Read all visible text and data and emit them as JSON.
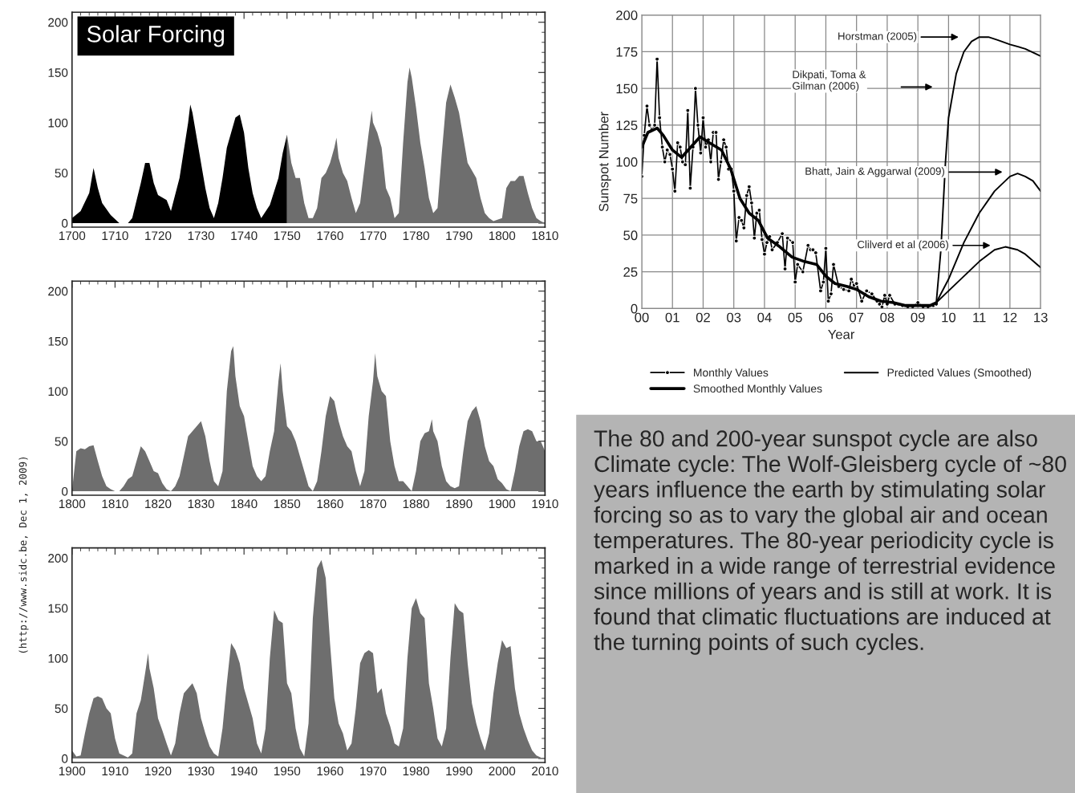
{
  "chart_data": [
    {
      "type": "area",
      "title": "Solar Forcing",
      "xlim": [
        1700,
        1810
      ],
      "ylim": [
        -4,
        210
      ],
      "xticks": [
        1700,
        1710,
        1720,
        1730,
        1740,
        1750,
        1760,
        1770,
        1780,
        1790,
        1800,
        1810
      ],
      "yticks": [
        0,
        50,
        100,
        150,
        200
      ],
      "grid": false,
      "series": [
        {
          "color": "#000000",
          "x": [
            1700,
            1702,
            1704,
            1705,
            1706,
            1707,
            1709,
            1711,
            1713,
            1714,
            1716,
            1717,
            1718,
            1719,
            1720,
            1722,
            1723,
            1725,
            1727,
            1727.5,
            1728,
            1730,
            1731,
            1732,
            1733,
            1734,
            1735,
            1736,
            1738,
            1739,
            1740,
            1741,
            1742,
            1743,
            1744,
            1746,
            1748,
            1749,
            1750
          ],
          "values": [
            5,
            12,
            30,
            55,
            35,
            20,
            8,
            0,
            0,
            5,
            40,
            60,
            60,
            40,
            28,
            23,
            12,
            45,
            100,
            118,
            110,
            60,
            35,
            15,
            5,
            20,
            45,
            75,
            105,
            108,
            90,
            55,
            30,
            15,
            5,
            18,
            45,
            70,
            88
          ]
        },
        {
          "color": "#6e6e6e",
          "x": [
            1750,
            1751,
            1752,
            1753,
            1754,
            1755,
            1756,
            1757,
            1758,
            1759,
            1760,
            1761,
            1761.5,
            1762,
            1763,
            1764,
            1765,
            1766,
            1767,
            1768,
            1769,
            1769.7,
            1770,
            1771,
            1772,
            1773,
            1774,
            1775,
            1776,
            1777,
            1778,
            1778.5,
            1779,
            1780,
            1781,
            1782,
            1783,
            1784,
            1785,
            1786,
            1787,
            1788,
            1789,
            1790,
            1791,
            1792,
            1794,
            1795,
            1796,
            1797,
            1798,
            1800,
            1801,
            1802,
            1803,
            1804,
            1805,
            1806,
            1807,
            1808,
            1809,
            1810
          ],
          "values": [
            88,
            60,
            45,
            45,
            20,
            5,
            5,
            15,
            45,
            50,
            60,
            75,
            85,
            65,
            50,
            42,
            25,
            10,
            20,
            55,
            90,
            112,
            100,
            90,
            75,
            35,
            25,
            5,
            10,
            80,
            140,
            155,
            145,
            115,
            80,
            55,
            25,
            10,
            15,
            70,
            120,
            138,
            125,
            110,
            85,
            60,
            45,
            25,
            10,
            5,
            2,
            5,
            35,
            42,
            42,
            47,
            47,
            30,
            15,
            5,
            2,
            0
          ]
        }
      ]
    },
    {
      "type": "area",
      "xlim": [
        1800,
        1910
      ],
      "ylim": [
        -4,
        210
      ],
      "xticks": [
        1800,
        1810,
        1820,
        1830,
        1840,
        1850,
        1860,
        1870,
        1880,
        1890,
        1900,
        1910
      ],
      "yticks": [
        0,
        50,
        100,
        150,
        200
      ],
      "grid": false,
      "series": [
        {
          "color": "#6e6e6e",
          "x": [
            1800,
            1801,
            1802,
            1803,
            1804,
            1805,
            1806,
            1807,
            1808,
            1809,
            1810,
            1811,
            1812,
            1813,
            1814,
            1815,
            1816,
            1817,
            1818,
            1819,
            1820,
            1821,
            1822,
            1823,
            1824,
            1825,
            1826,
            1827,
            1828,
            1829,
            1830,
            1831,
            1832,
            1833,
            1834,
            1835,
            1836,
            1837,
            1837.5,
            1838,
            1839,
            1840,
            1841,
            1842,
            1843,
            1844,
            1845,
            1846,
            1847,
            1848,
            1848.5,
            1849,
            1850,
            1851,
            1852,
            1853,
            1854,
            1855,
            1856,
            1857,
            1858,
            1859,
            1860,
            1861,
            1862,
            1863,
            1864,
            1865,
            1866,
            1867,
            1868,
            1869,
            1870,
            1870.5,
            1871,
            1872,
            1873,
            1874,
            1875,
            1876,
            1877,
            1878,
            1879,
            1880,
            1881,
            1882,
            1883,
            1883.7,
            1884,
            1885,
            1886,
            1887,
            1888,
            1889,
            1890,
            1891,
            1892,
            1893,
            1894,
            1895,
            1896,
            1897,
            1898,
            1899,
            1900,
            1901,
            1902,
            1903,
            1904,
            1905,
            1906,
            1907,
            1908,
            1909,
            1910
          ],
          "values": [
            0,
            40,
            43,
            42,
            45,
            46,
            30,
            15,
            5,
            2,
            0,
            0,
            5,
            12,
            15,
            30,
            45,
            40,
            30,
            20,
            18,
            8,
            2,
            0,
            5,
            15,
            35,
            55,
            60,
            65,
            70,
            55,
            30,
            10,
            5,
            20,
            100,
            140,
            145,
            115,
            85,
            75,
            50,
            25,
            15,
            10,
            15,
            40,
            60,
            110,
            128,
            100,
            65,
            60,
            50,
            35,
            20,
            5,
            0,
            10,
            40,
            75,
            95,
            90,
            70,
            55,
            45,
            40,
            20,
            5,
            20,
            75,
            110,
            138,
            115,
            100,
            95,
            50,
            25,
            10,
            10,
            5,
            0,
            20,
            50,
            58,
            60,
            72,
            60,
            50,
            25,
            10,
            5,
            3,
            5,
            40,
            70,
            80,
            85,
            70,
            45,
            30,
            25,
            12,
            8,
            2,
            0,
            20,
            45,
            60,
            62,
            60,
            50,
            50,
            40
          ]
        }
      ]
    },
    {
      "type": "area",
      "xlim": [
        1900,
        2010
      ],
      "ylim": [
        -4,
        210
      ],
      "xticks": [
        1900,
        1910,
        1920,
        1930,
        1940,
        1950,
        1960,
        1970,
        1980,
        1990,
        2000,
        2010
      ],
      "yticks": [
        0,
        50,
        100,
        150,
        200
      ],
      "grid": false,
      "annotations": [
        "(http://www.sidc.be, Dec 1, 2009)"
      ],
      "series": [
        {
          "color": "#6e6e6e",
          "x": [
            1900,
            1901,
            1902,
            1903,
            1904,
            1905,
            1906,
            1907,
            1908,
            1909,
            1910,
            1911,
            1912,
            1913,
            1914,
            1915,
            1916,
            1917,
            1917.7,
            1918,
            1919,
            1920,
            1921,
            1922,
            1923,
            1924,
            1925,
            1926,
            1927,
            1928,
            1929,
            1930,
            1931,
            1932,
            1933,
            1934,
            1935,
            1936,
            1937,
            1938,
            1939,
            1940,
            1941,
            1942,
            1943,
            1944,
            1945,
            1946,
            1947,
            1948,
            1949,
            1950,
            1951,
            1952,
            1953,
            1954,
            1955,
            1956,
            1957,
            1958,
            1959,
            1960,
            1961,
            1962,
            1963,
            1964,
            1965,
            1966,
            1967,
            1968,
            1969,
            1970,
            1971,
            1972,
            1973,
            1974,
            1975,
            1976,
            1977,
            1978,
            1979,
            1980,
            1981,
            1982,
            1983,
            1984,
            1985,
            1986,
            1987,
            1988,
            1989,
            1990,
            1991,
            1992,
            1993,
            1994,
            1995,
            1996,
            1997,
            1998,
            1999,
            2000,
            2001,
            2002,
            2003,
            2004,
            2005,
            2006,
            2007,
            2008,
            2009
          ],
          "values": [
            8,
            2,
            3,
            25,
            45,
            60,
            62,
            60,
            50,
            45,
            20,
            5,
            3,
            1,
            5,
            45,
            58,
            85,
            105,
            90,
            70,
            40,
            28,
            15,
            3,
            15,
            45,
            65,
            70,
            75,
            65,
            40,
            25,
            12,
            5,
            2,
            30,
            75,
            115,
            108,
            95,
            70,
            55,
            40,
            15,
            5,
            30,
            100,
            148,
            138,
            135,
            75,
            65,
            30,
            10,
            2,
            35,
            140,
            190,
            198,
            180,
            115,
            60,
            35,
            25,
            8,
            15,
            50,
            95,
            105,
            108,
            105,
            65,
            70,
            45,
            32,
            15,
            12,
            30,
            100,
            150,
            160,
            145,
            140,
            75,
            50,
            20,
            12,
            30,
            100,
            155,
            148,
            145,
            95,
            55,
            35,
            20,
            8,
            25,
            65,
            95,
            118,
            110,
            112,
            70,
            45,
            30,
            18,
            8,
            3,
            1
          ]
        }
      ]
    },
    {
      "type": "line",
      "xlabel": "Year",
      "ylabel": "Sunspot Number",
      "xlim": [
        2000,
        2013
      ],
      "ylim": [
        0,
        200
      ],
      "xticks": [
        {
          "value": 2000,
          "label": "00"
        },
        {
          "value": 2001,
          "label": "01"
        },
        {
          "value": 2002,
          "label": "02"
        },
        {
          "value": 2003,
          "label": "03"
        },
        {
          "value": 2004,
          "label": "04"
        },
        {
          "value": 2005,
          "label": "05"
        },
        {
          "value": 2006,
          "label": "06"
        },
        {
          "value": 2007,
          "label": "07"
        },
        {
          "value": 2008,
          "label": "08"
        },
        {
          "value": 2009,
          "label": "09"
        },
        {
          "value": 2010,
          "label": "10"
        },
        {
          "value": 2011,
          "label": "11"
        },
        {
          "value": 2012,
          "label": "12"
        },
        {
          "value": 2013,
          "label": "13"
        }
      ],
      "yticks": [
        0,
        25,
        50,
        75,
        100,
        125,
        150,
        175,
        200
      ],
      "grid": true,
      "legend": "bottom",
      "annotations": [
        "Horstman (2005)",
        "Dikpati, Toma &\nGilman (2006)",
        "Bhatt, Jain & Aggarwal (2009)",
        "Clilverd et al (2006)"
      ],
      "series": [
        {
          "name": "Monthly Values",
          "color": "#000000",
          "marker": "circle",
          "x": [
            2000.0,
            2000.08,
            2000.17,
            2000.25,
            2000.33,
            2000.42,
            2000.5,
            2000.58,
            2000.67,
            2000.75,
            2000.83,
            2000.92,
            2001.0,
            2001.08,
            2001.17,
            2001.25,
            2001.33,
            2001.42,
            2001.5,
            2001.58,
            2001.67,
            2001.75,
            2001.83,
            2001.92,
            2002.0,
            2002.08,
            2002.17,
            2002.25,
            2002.33,
            2002.42,
            2002.5,
            2002.58,
            2002.67,
            2002.75,
            2002.83,
            2002.92,
            2003.0,
            2003.08,
            2003.17,
            2003.25,
            2003.33,
            2003.42,
            2003.5,
            2003.58,
            2003.67,
            2003.75,
            2003.83,
            2003.92,
            2004.0,
            2004.08,
            2004.17,
            2004.25,
            2004.42,
            2004.58,
            2004.67,
            2004.75,
            2004.92,
            2005.0,
            2005.08,
            2005.25,
            2005.42,
            2005.5,
            2005.58,
            2005.67,
            2005.83,
            2005.92,
            2006.0,
            2006.08,
            2006.17,
            2006.25,
            2006.42,
            2006.58,
            2006.75,
            2006.83,
            2006.92,
            2007.0,
            2007.17,
            2007.33,
            2007.5,
            2007.67,
            2007.75,
            2007.83,
            2007.92,
            2008.0,
            2008.08,
            2008.25,
            2008.5,
            2008.67,
            2008.83,
            2009.0,
            2009.17,
            2009.33,
            2009.5,
            2009.6
          ],
          "values": [
            90,
            118,
            138,
            125,
            122,
            125,
            170,
            130,
            110,
            100,
            108,
            105,
            95,
            80,
            113,
            110,
            100,
            98,
            135,
            82,
            110,
            150,
            125,
            106,
            130,
            110,
            115,
            100,
            120,
            120,
            88,
            100,
            115,
            110,
            95,
            95,
            80,
            46,
            62,
            60,
            55,
            77,
            83,
            72,
            48,
            65,
            67,
            47,
            37,
            45,
            49,
            40,
            45,
            51,
            27,
            48,
            45,
            18,
            30,
            25,
            43,
            40,
            40,
            38,
            12,
            18,
            41,
            5,
            10,
            30,
            15,
            13,
            12,
            20,
            16,
            17,
            5,
            12,
            10,
            5,
            3,
            1,
            9,
            3,
            9,
            3,
            2,
            1,
            1,
            4,
            1,
            1,
            2,
            3
          ]
        },
        {
          "name": "Smoothed Monthly Values",
          "color": "#000000",
          "x": [
            2000.0,
            2000.2,
            2000.5,
            2000.7,
            2001.0,
            2001.3,
            2001.6,
            2001.9,
            2002.2,
            2002.6,
            2002.9,
            2003.2,
            2003.5,
            2003.8,
            2004.1,
            2004.5,
            2004.9,
            2005.3,
            2005.7,
            2006.0,
            2006.3,
            2006.7,
            2007.0,
            2007.4,
            2007.8,
            2008.2,
            2008.6,
            2009.0,
            2009.4,
            2009.6
          ],
          "values": [
            110,
            120,
            123,
            118,
            108,
            103,
            110,
            117,
            113,
            108,
            95,
            75,
            65,
            60,
            48,
            42,
            35,
            32,
            30,
            22,
            17,
            15,
            13,
            8,
            5,
            4,
            2,
            2,
            2,
            4
          ]
        },
        {
          "name": "Predicted Values (Smoothed)",
          "color": "#000000",
          "x": [
            2009.6,
            2009.75,
            2009.9,
            2010.0,
            2010.25,
            2010.5,
            2010.75,
            2011.0,
            2011.3,
            2011.6,
            2012.0,
            2012.5,
            2013.0
          ],
          "values": [
            4,
            40,
            100,
            130,
            160,
            175,
            182,
            185,
            185,
            183,
            180,
            177,
            172
          ]
        },
        {
          "color": "#000000",
          "x": [
            2009.6,
            2010.0,
            2010.5,
            2011.0,
            2011.5,
            2012.0,
            2012.25,
            2012.5,
            2012.75,
            2013.0
          ],
          "values": [
            4,
            20,
            45,
            65,
            80,
            90,
            92,
            90,
            87,
            80
          ]
        },
        {
          "color": "#000000",
          "x": [
            2009.6,
            2010.0,
            2010.5,
            2011.0,
            2011.5,
            2011.85,
            2012.25,
            2012.5,
            2013.0
          ],
          "values": [
            4,
            12,
            22,
            32,
            40,
            42,
            40,
            37,
            28
          ]
        }
      ]
    },
    {
      "type": "other",
      "annotations": [
        "The 80 and 200-year sunspot cycle are also Climate cycle: The Wolf-Gleisberg cycle of ~80 years influence the earth by stimulating solar forcing so as to vary the global air and ocean temperatures. The 80-year periodicity cycle is marked in a wide range of terrestrial evidence since millions of years and is still at work. It is found that climatic fluctuations are induced at the turning points of such cycles."
      ]
    }
  ]
}
